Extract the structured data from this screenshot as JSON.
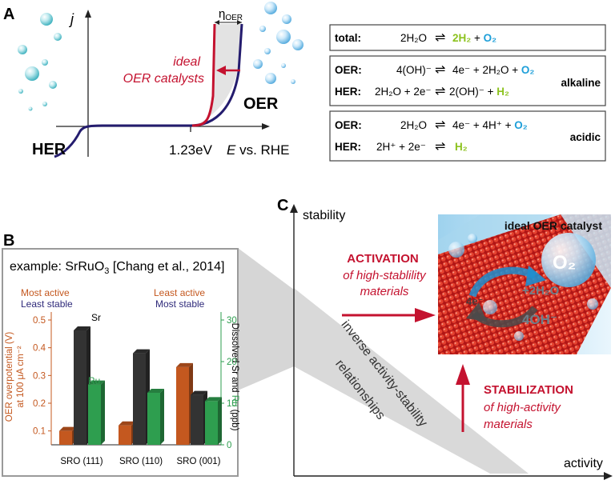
{
  "panel_a": {
    "label": "A",
    "y_axis": "j",
    "eta": "η",
    "eta_sub": "OER",
    "ideal_line1": "ideal",
    "ideal_line2": "OER catalysts",
    "her": "HER",
    "oer": "OER",
    "potential": "1.23eV",
    "x_axis_e": "E",
    "x_axis_rest": " vs. RHE",
    "colors": {
      "curve_blue": "#241c6e",
      "ideal_red": "#c4122f",
      "shade": "#e3e3e3"
    }
  },
  "equations": {
    "total_label": "total:",
    "total_left": "2H₂O",
    "total_arrow": "⇌",
    "total_h2": "2H₂",
    "total_plus": " + ",
    "total_o2": "O₂",
    "alkaline": {
      "oer_label": "OER:",
      "oer_left": "4(OH)⁻",
      "oer_arrow": "⇌",
      "oer_right": "4e⁻ + 2H₂O + ",
      "oer_o2": "O₂",
      "her_label": "HER:",
      "her_left": "2H₂O + 2e⁻",
      "her_arrow": "⇌",
      "her_right": "2(OH)⁻ + ",
      "her_h2": "H₂",
      "tag": "alkaline"
    },
    "acidic": {
      "oer_label": "OER:",
      "oer_left": "2H₂O",
      "oer_arrow": "⇌",
      "oer_right": "4e⁻ + 4H⁺ + ",
      "oer_o2": "O₂",
      "her_label": "HER:",
      "her_left": "2H⁺ + 2e⁻",
      "her_arrow": "⇌",
      "her_h2": "H₂",
      "tag": "acidic"
    },
    "colors": {
      "h2_green": "#8cc21e",
      "o2_blue": "#1e9fd9"
    }
  },
  "panel_b": {
    "label": "B",
    "example_prefix": "example: SrRuO",
    "example_sub": "3",
    "example_suffix": " [Chang et al., 2014]",
    "left_top": "Most active",
    "left_bottom": "Least stable",
    "right_top": "Least active",
    "right_bottom": "Most stable",
    "sr_label": "Sr",
    "ru_label": "Ru",
    "ylabel_left_1": "OER overpotential (V)",
    "ylabel_left_2": "at 100 μA cm⁻²",
    "ylabel_right_a": "Dissolved Sr and ",
    "ylabel_right_ru": "Ru",
    "ylabel_right_b": " (ppb)",
    "colors": {
      "orange": "#c4581f",
      "dark": "#333333",
      "green": "#2e9e4f",
      "navy": "#2f2a7a"
    }
  },
  "chart_data": {
    "type": "bar",
    "title": "example: SrRuO3 [Chang et al., 2014]",
    "categories": [
      "SRO (111)",
      "SRO (110)",
      "SRO (001)"
    ],
    "y_left_label": "OER overpotential (V) at 100 μA cm⁻²",
    "y_left_lim": [
      0.05,
      0.5
    ],
    "y_left_ticks": [
      0.1,
      0.2,
      0.3,
      0.4,
      0.5
    ],
    "y_right_label": "Dissolved Sr and Ru (ppb)",
    "y_right_lim": [
      0,
      30
    ],
    "y_right_ticks": [
      0,
      10,
      20,
      30
    ],
    "series": [
      {
        "name": "OER overpotential",
        "axis": "left",
        "values": [
          0.1,
          0.12,
          0.33
        ]
      },
      {
        "name": "Sr",
        "axis": "right",
        "values": [
          27.5,
          22.0,
          12.0
        ]
      },
      {
        "name": "Ru",
        "axis": "right",
        "values": [
          14.5,
          12.5,
          10.5
        ]
      }
    ]
  },
  "panel_c": {
    "label": "C",
    "y_axis": "stability",
    "x_axis": "activity",
    "activation_title": "ACTIVATION",
    "activation_sub1": "of high-stablility",
    "activation_sub2": "materials",
    "stabilization_title": "STABILIZATION",
    "stabilization_sub1": "of high-activity",
    "stabilization_sub2": "materials",
    "band_line1": "inverse activity-stability",
    "band_line2": "relationships",
    "catalyst_title": "ideal OER catalyst",
    "o2": "O₂",
    "plus_h2o": "+2H₂O",
    "electrons": "4e⁻",
    "hydroxide": "4OH⁻",
    "colors": {
      "red": "#c4122f",
      "band": "#d9d9d9",
      "sky": "#c6e6f6"
    }
  }
}
